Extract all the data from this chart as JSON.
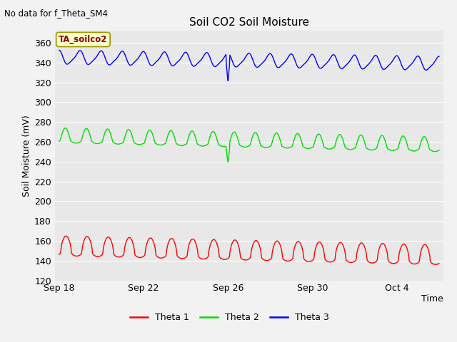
{
  "title": "Soil CO2 Soil Moisture",
  "no_data_text": "No data for f_Theta_SM4",
  "ylabel": "Soil Moisture (mV)",
  "xlabel": "Time",
  "legend_label": "TA_soilco2",
  "ylim": [
    120,
    372
  ],
  "bg_color": "#e8e8e8",
  "grid_color": "#ffffff",
  "theta1_color": "#ff0000",
  "theta2_color": "#00dd00",
  "theta3_color": "#0000ff",
  "legend_entries": [
    "Theta 1",
    "Theta 2",
    "Theta 3"
  ],
  "x_tick_labels": [
    "Sep 18",
    "Sep 22",
    "Sep 26",
    "Sep 30",
    "Oct 4"
  ],
  "x_tick_positions": [
    0,
    4,
    8,
    12,
    16
  ],
  "fig_bg": "#f2f2f2",
  "title_fontsize": 11,
  "tick_fontsize": 9,
  "label_fontsize": 9
}
